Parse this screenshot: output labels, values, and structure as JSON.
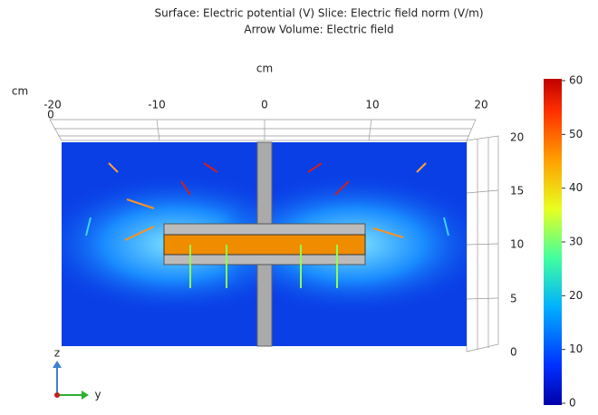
{
  "title": {
    "line1": "Surface: Electric potential (V)  Slice: Electric field norm (V/m)",
    "line2": "Arrow Volume: Electric field"
  },
  "top_axis": {
    "unit": "cm",
    "ticks": [
      -20,
      -10,
      0,
      10,
      20
    ]
  },
  "left_axis": {
    "unit": "cm",
    "ticks": [
      0
    ]
  },
  "right_axis": {
    "ticks": [
      20,
      15,
      10,
      5,
      0
    ]
  },
  "colorbar": {
    "ticks": [
      60,
      50,
      40,
      30,
      20,
      10,
      0
    ]
  },
  "triad": {
    "vertical": "z",
    "horizontal": "y"
  }
}
